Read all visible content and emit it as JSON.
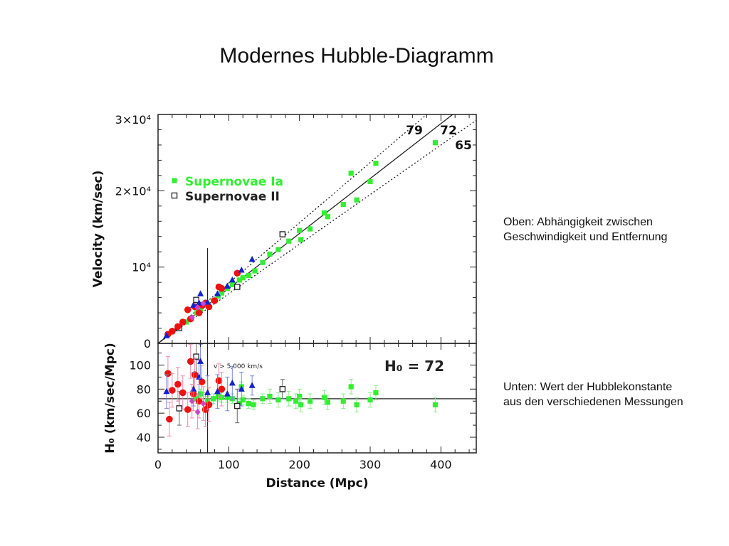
{
  "title": "Modernes Hubble-Diagramm",
  "notes": {
    "top": [
      "Oben: Abhängigkeit zwischen",
      "Geschwindigkeit und Entfernung"
    ],
    "bottom": [
      "Unten: Wert der Hubblekonstante",
      "aus den verschiedenen Messungen"
    ]
  },
  "colors": {
    "sn_ia": "#33ee33",
    "sn_ii": "#222222",
    "red": "#ee1111",
    "blue": "#1122cc",
    "magenta": "#cc44cc",
    "errorbar_pink": "#ee88aa",
    "axis": "#222222"
  },
  "chart_data": [
    {
      "type": "scatter",
      "panel": "top",
      "xlim": [
        0,
        450
      ],
      "ylim": [
        0,
        30000
      ],
      "ylabel": "Velocity (km/sec)",
      "y_ticks": [
        {
          "value": 0,
          "label": "0"
        },
        {
          "value": 10000,
          "label": "10⁴"
        },
        {
          "value": 20000,
          "label": "2×10⁴"
        },
        {
          "value": 30000,
          "label": "3×10⁴"
        }
      ],
      "legend": {
        "placement": "upper-left",
        "entries": [
          {
            "label": "Supernovae Ia",
            "marker": "filled-square",
            "color": "#33ee33"
          },
          {
            "label": "Supernovae II",
            "marker": "open-square",
            "color": "#222222"
          }
        ]
      },
      "reference_lines": [
        {
          "H0": 72,
          "label": "72",
          "style": "solid"
        },
        {
          "H0": 79,
          "label": "79",
          "style": "dotted"
        },
        {
          "H0": 65,
          "label": "65",
          "style": "dotted"
        }
      ],
      "vertical_line_x": 70,
      "series": [
        {
          "name": "Supernovae Ia",
          "marker": "filled-square",
          "color": "#33ee33",
          "points": [
            [
              20,
              1500
            ],
            [
              30,
              2100
            ],
            [
              40,
              2800
            ],
            [
              55,
              4000
            ],
            [
              60,
              4500
            ],
            [
              70,
              5000
            ],
            [
              78,
              5600
            ],
            [
              85,
              6200
            ],
            [
              90,
              6600
            ],
            [
              98,
              7200
            ],
            [
              105,
              7700
            ],
            [
              115,
              8300
            ],
            [
              120,
              8600
            ],
            [
              128,
              8900
            ],
            [
              137,
              9500
            ],
            [
              148,
              10600
            ],
            [
              158,
              11700
            ],
            [
              170,
              12300
            ],
            [
              185,
              13400
            ],
            [
              200,
              14800
            ],
            [
              202,
              13600
            ],
            [
              215,
              15000
            ],
            [
              235,
              17100
            ],
            [
              240,
              16600
            ],
            [
              262,
              18200
            ],
            [
              273,
              22300
            ],
            [
              281,
              18800
            ],
            [
              300,
              21200
            ],
            [
              308,
              23600
            ],
            [
              392,
              26300
            ]
          ]
        },
        {
          "name": "Supernovae II",
          "marker": "open-square",
          "color": "#222222",
          "points": [
            [
              30,
              2000
            ],
            [
              54,
              5700
            ],
            [
              112,
              7400
            ],
            [
              176,
              14300
            ]
          ]
        },
        {
          "marker": "filled-circle",
          "color": "#ee1111",
          "points": [
            [
              14,
              1200
            ],
            [
              20,
              1600
            ],
            [
              28,
              2200
            ],
            [
              35,
              2800
            ],
            [
              42,
              4400
            ],
            [
              46,
              3200
            ],
            [
              52,
              4800
            ],
            [
              58,
              4000
            ],
            [
              62,
              5000
            ],
            [
              67,
              5300
            ],
            [
              72,
              4800
            ],
            [
              80,
              5600
            ],
            [
              86,
              7400
            ],
            [
              90,
              7200
            ],
            [
              112,
              9200
            ]
          ]
        },
        {
          "marker": "filled-triangle",
          "color": "#1122cc",
          "points": [
            [
              12,
              1000
            ],
            [
              50,
              5000
            ],
            [
              58,
              5300
            ],
            [
              60,
              6500
            ],
            [
              70,
              5400
            ],
            [
              84,
              6500
            ],
            [
              98,
              7500
            ],
            [
              105,
              8300
            ],
            [
              118,
              9600
            ],
            [
              133,
              11000
            ]
          ]
        },
        {
          "marker": "filled-diamond",
          "color": "#cc44cc",
          "points": [
            [
              48,
              3400
            ],
            [
              56,
              4700
            ],
            [
              64,
              5200
            ]
          ]
        }
      ]
    },
    {
      "type": "scatter",
      "panel": "bottom",
      "xlim": [
        0,
        450
      ],
      "ylim": [
        27,
        118
      ],
      "xlabel": "Distance (Mpc)",
      "ylabel": "H₀ (km/sec/Mpc)",
      "x_ticks": [
        0,
        100,
        200,
        300,
        400
      ],
      "y_ticks": [
        40,
        60,
        80,
        100
      ],
      "annotations": [
        "v > 5,000 km/s",
        "H₀ = 72"
      ],
      "reference_line_y": 72,
      "vertical_line_x": 70,
      "series": [
        {
          "name": "Supernovae Ia",
          "marker": "filled-square",
          "color": "#33ee33",
          "points": [
            [
              55,
              72
            ],
            [
              60,
              76
            ],
            [
              70,
              70
            ],
            [
              78,
              72
            ],
            [
              85,
              74
            ],
            [
              90,
              73
            ],
            [
              98,
              73
            ],
            [
              105,
              72
            ],
            [
              115,
              68
            ],
            [
              118,
              82
            ],
            [
              120,
              71
            ],
            [
              128,
              68
            ],
            [
              135,
              67
            ],
            [
              148,
              72
            ],
            [
              158,
              74
            ],
            [
              170,
              71
            ],
            [
              185,
              72
            ],
            [
              195,
              70
            ],
            [
              200,
              74
            ],
            [
              202,
              67
            ],
            [
              215,
              70
            ],
            [
              235,
              73
            ],
            [
              240,
              69
            ],
            [
              262,
              70
            ],
            [
              273,
              82
            ],
            [
              281,
              67
            ],
            [
              300,
              71
            ],
            [
              308,
              77
            ],
            [
              392,
              67
            ]
          ]
        },
        {
          "name": "Supernovae II",
          "marker": "open-square",
          "color": "#222222",
          "points": [
            [
              30,
              64
            ],
            [
              54,
              107
            ],
            [
              112,
              66
            ],
            [
              176,
              80
            ]
          ]
        },
        {
          "marker": "filled-circle",
          "color": "#ee1111",
          "points": [
            [
              14,
              93
            ],
            [
              16,
              55
            ],
            [
              20,
              79
            ],
            [
              28,
              84
            ],
            [
              35,
              77
            ],
            [
              42,
              63
            ],
            [
              46,
              103
            ],
            [
              50,
              76
            ],
            [
              52,
              92
            ],
            [
              58,
              70
            ],
            [
              62,
              86
            ],
            [
              67,
              63
            ],
            [
              72,
              67
            ],
            [
              86,
              87
            ],
            [
              90,
              80
            ]
          ]
        },
        {
          "marker": "filled-triangle",
          "color": "#1122cc",
          "points": [
            [
              12,
              78
            ],
            [
              50,
              80
            ],
            [
              58,
              90
            ],
            [
              60,
              103
            ],
            [
              70,
              77
            ],
            [
              84,
              78
            ],
            [
              98,
              76
            ],
            [
              105,
              85
            ],
            [
              118,
              80
            ],
            [
              133,
              83
            ]
          ]
        },
        {
          "marker": "filled-diamond",
          "color": "#cc44cc",
          "points": [
            [
              48,
              70
            ],
            [
              56,
              61
            ],
            [
              64,
              68
            ]
          ]
        }
      ]
    }
  ]
}
